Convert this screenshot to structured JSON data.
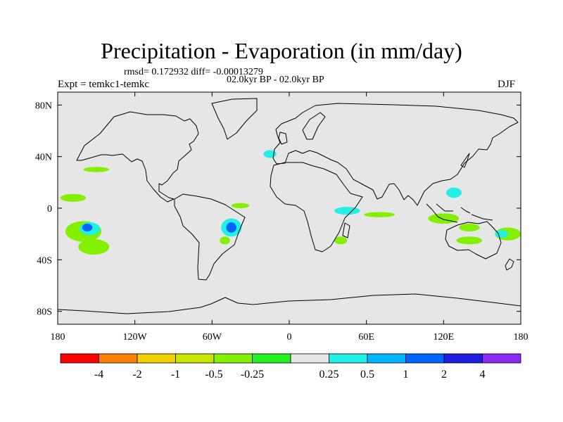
{
  "chart_data": {
    "type": "heatmap",
    "title": "Precipitation - Evaporation (in mm/day)",
    "stats": "rmsd= 0.172932 diff= -0.00013279",
    "period": "02.0kyr BP - 02.0kyr BP",
    "experiment": "Expt = temkc1-temkc",
    "season": "DJF",
    "x_range": [
      -180,
      180
    ],
    "y_range": [
      -90,
      90
    ],
    "x_ticks": [
      {
        "value": -180,
        "label": "180"
      },
      {
        "value": -120,
        "label": "120W"
      },
      {
        "value": -60,
        "label": "60W"
      },
      {
        "value": 0,
        "label": "0"
      },
      {
        "value": 60,
        "label": "60E"
      },
      {
        "value": 120,
        "label": "120E"
      },
      {
        "value": 180,
        "label": "180"
      }
    ],
    "y_ticks": [
      {
        "value": 80,
        "label": "80N"
      },
      {
        "value": 40,
        "label": "40N"
      },
      {
        "value": 0,
        "label": "0"
      },
      {
        "value": -40,
        "label": "40S"
      },
      {
        "value": -80,
        "label": "80S"
      }
    ],
    "colorbar": {
      "colors": [
        "#ff0000",
        "#ff8000",
        "#f0d000",
        "#c8e600",
        "#82f000",
        "#22f022",
        "#e6e6e6",
        "#22f0e6",
        "#00b4ff",
        "#0064ff",
        "#1e1edc",
        "#8c28f0"
      ],
      "labels": [
        "-4",
        "-2",
        "-1",
        "-0.5",
        "-0.25",
        "0.25",
        "0.5",
        "1",
        "2",
        "4"
      ]
    },
    "anomalies": [
      {
        "lon": -160,
        "lat": -18,
        "rlon": 14,
        "rlat": 8,
        "level": "-0.5"
      },
      {
        "lon": -152,
        "lat": -30,
        "rlon": 12,
        "rlat": 6,
        "level": "-0.5"
      },
      {
        "lon": -168,
        "lat": 8,
        "rlon": 10,
        "rlat": 3,
        "level": "-0.5"
      },
      {
        "lon": -150,
        "lat": 30,
        "rlon": 10,
        "rlat": 2,
        "level": "-0.5"
      },
      {
        "lon": -155,
        "lat": -16,
        "rlon": 8,
        "rlat": 5,
        "level": "0.25"
      },
      {
        "lon": -157,
        "lat": -15,
        "rlon": 4,
        "rlat": 3,
        "level": "1"
      },
      {
        "lon": -45,
        "lat": -15,
        "rlon": 8,
        "rlat": 7,
        "level": "0.25"
      },
      {
        "lon": -45,
        "lat": -15,
        "rlon": 4,
        "rlat": 4,
        "level": "1"
      },
      {
        "lon": -38,
        "lat": 2,
        "rlon": 7,
        "rlat": 2,
        "level": "-0.5"
      },
      {
        "lon": -50,
        "lat": -25,
        "rlon": 4,
        "rlat": 3,
        "level": "-0.5"
      },
      {
        "lon": -15,
        "lat": 42,
        "rlon": 5,
        "rlat": 3,
        "level": "0.25"
      },
      {
        "lon": 45,
        "lat": -2,
        "rlon": 10,
        "rlat": 3,
        "level": "0.25"
      },
      {
        "lon": 70,
        "lat": -5,
        "rlon": 12,
        "rlat": 2,
        "level": "-0.5"
      },
      {
        "lon": 40,
        "lat": -25,
        "rlon": 5,
        "rlat": 3,
        "level": "-0.5"
      },
      {
        "lon": 120,
        "lat": -8,
        "rlon": 12,
        "rlat": 4,
        "level": "-0.5"
      },
      {
        "lon": 140,
        "lat": -15,
        "rlon": 8,
        "rlat": 3,
        "level": "-0.5"
      },
      {
        "lon": 128,
        "lat": 12,
        "rlon": 6,
        "rlat": 4,
        "level": "0.25"
      },
      {
        "lon": 140,
        "lat": -25,
        "rlon": 10,
        "rlat": 3,
        "level": "-0.5"
      },
      {
        "lon": 170,
        "lat": -20,
        "rlon": 10,
        "rlat": 5,
        "level": "-0.5"
      },
      {
        "lon": 165,
        "lat": -20,
        "rlon": 5,
        "rlat": 3,
        "level": "0.25"
      }
    ]
  }
}
